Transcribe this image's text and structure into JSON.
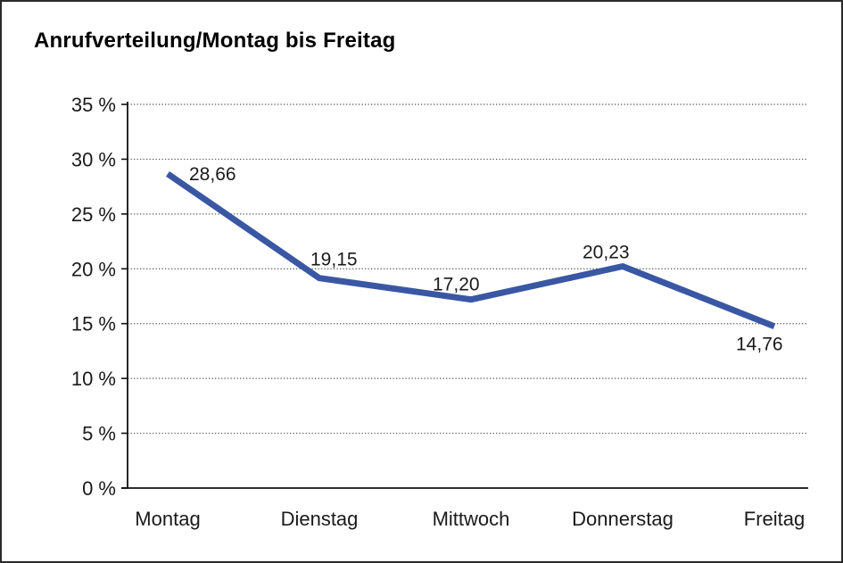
{
  "chart_data": {
    "type": "line",
    "title": "Anrufverteilung/Montag bis Freitag",
    "categories": [
      "Montag",
      "Dienstag",
      "Mittwoch",
      "Donnerstag",
      "Freitag"
    ],
    "values": [
      28.66,
      19.15,
      17.2,
      20.23,
      14.76
    ],
    "data_labels": [
      "28,66",
      "19,15",
      "17,20",
      "20,23",
      "14,76"
    ],
    "xlabel": "",
    "ylabel": "",
    "ylim": [
      0,
      35
    ],
    "ytick_step": 5,
    "ytick_labels": [
      "0 %",
      "5 %",
      "10 %",
      "15 %",
      "20 %",
      "25 %",
      "30 %",
      "35 %"
    ],
    "grid": "horizontal-dotted",
    "legend": "none",
    "colors": {
      "line": "#3A57A4",
      "axis": "#111111",
      "gridline": "#555555",
      "text": "#1a1a1a",
      "frame_border": "#2b2b2b",
      "background": "#ffffff"
    }
  }
}
